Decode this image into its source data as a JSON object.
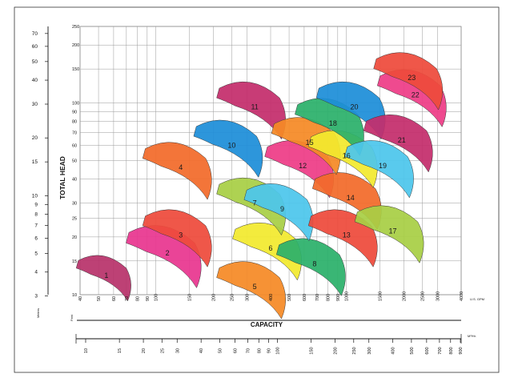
{
  "chart_data": {
    "type": "area",
    "title": "",
    "xlabel": "CAPACITY",
    "ylabel": "TOTAL HEAD",
    "units": {
      "gpm": "U.S. GPM",
      "m3h": "M³/Hr.",
      "feet": "Feet",
      "meters": "Meters"
    },
    "x_scale": "log",
    "y_scale": "log",
    "xlim_gpm": [
      40,
      4000
    ],
    "ylim_feet": [
      10,
      250
    ],
    "grid": true,
    "gpm_ticks": [
      "40",
      "50",
      "60",
      "70",
      "80",
      "90",
      "100",
      "150",
      "200",
      "250",
      "300",
      "400",
      "500",
      "600",
      "700",
      "800",
      "900",
      "1000",
      "1500",
      "2000",
      "2500",
      "3000",
      "4000"
    ],
    "feet_ticks": [
      "10",
      "15",
      "20",
      "25",
      "30",
      "40",
      "50",
      "60",
      "70",
      "80",
      "90",
      "100",
      "150",
      "200",
      "250"
    ],
    "meter_ticks": [
      "3",
      "4",
      "5",
      "6",
      "7",
      "8",
      "9",
      "10",
      "15",
      "20",
      "30",
      "40",
      "50",
      "60",
      "70"
    ],
    "m3h_ticks": [
      "10",
      "15",
      "20",
      "25",
      "30",
      "40",
      "50",
      "60",
      "70",
      "80",
      "90",
      "100",
      "150",
      "200",
      "250",
      "300",
      "400",
      "500",
      "600",
      "700",
      "800",
      "900"
    ],
    "series": [
      {
        "name": "1",
        "color": "#b8336a",
        "center_gpm": 55,
        "center_head_ft": 12.6
      },
      {
        "name": "2",
        "color": "#e8368f",
        "center_gpm": 115,
        "center_head_ft": 16.5
      },
      {
        "name": "3",
        "color": "#ee4a3b",
        "center_gpm": 135,
        "center_head_ft": 20.5
      },
      {
        "name": "4",
        "color": "#f26b2a",
        "center_gpm": 135,
        "center_head_ft": 46
      },
      {
        "name": "5",
        "color": "#f58a26",
        "center_gpm": 330,
        "center_head_ft": 11
      },
      {
        "name": "6",
        "color": "#f2ea2e",
        "center_gpm": 400,
        "center_head_ft": 17.5
      },
      {
        "name": "7",
        "color": "#a8cf45",
        "center_gpm": 330,
        "center_head_ft": 30
      },
      {
        "name": "8",
        "color": "#2bb06a",
        "center_gpm": 680,
        "center_head_ft": 14.5
      },
      {
        "name": "9",
        "color": "#4cc6ec",
        "center_gpm": 460,
        "center_head_ft": 28
      },
      {
        "name": "10",
        "color": "#1d8ed8",
        "center_gpm": 250,
        "center_head_ft": 60
      },
      {
        "name": "11",
        "color": "#c42d6c",
        "center_gpm": 330,
        "center_head_ft": 95
      },
      {
        "name": "12",
        "color": "#ee3c86",
        "center_gpm": 590,
        "center_head_ft": 47
      },
      {
        "name": "13",
        "color": "#ee4a3b",
        "center_gpm": 1000,
        "center_head_ft": 20.5
      },
      {
        "name": "14",
        "color": "#f26b2a",
        "center_gpm": 1050,
        "center_head_ft": 32
      },
      {
        "name": "15",
        "color": "#f58a26",
        "center_gpm": 640,
        "center_head_ft": 62
      },
      {
        "name": "16",
        "color": "#f2ea2e",
        "center_gpm": 1000,
        "center_head_ft": 53
      },
      {
        "name": "17",
        "color": "#a8cf45",
        "center_gpm": 1750,
        "center_head_ft": 21.5
      },
      {
        "name": "18",
        "color": "#2bb06a",
        "center_gpm": 850,
        "center_head_ft": 78
      },
      {
        "name": "19",
        "color": "#4cc6ec",
        "center_gpm": 1550,
        "center_head_ft": 47
      },
      {
        "name": "20",
        "color": "#1d8ed8",
        "center_gpm": 1100,
        "center_head_ft": 95
      },
      {
        "name": "21",
        "color": "#c42d6c",
        "center_gpm": 1950,
        "center_head_ft": 64
      },
      {
        "name": "22",
        "color": "#ee3c86",
        "center_gpm": 2300,
        "center_head_ft": 110
      },
      {
        "name": "23",
        "color": "#ee4a3b",
        "center_gpm": 2200,
        "center_head_ft": 135
      }
    ]
  }
}
